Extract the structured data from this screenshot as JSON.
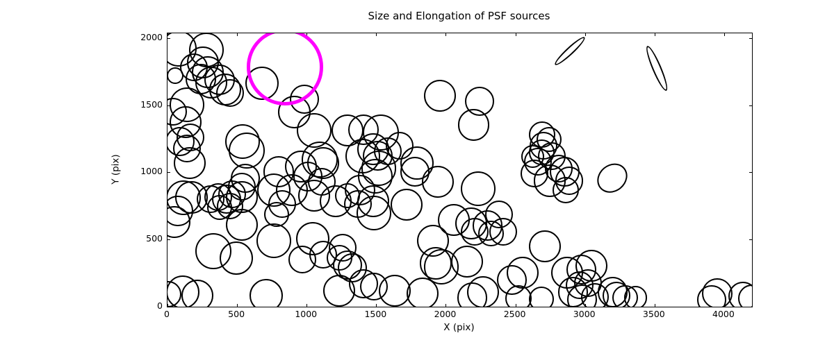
{
  "chart_data": {
    "type": "scatter",
    "title": "Size and Elongation of PSF sources",
    "xlabel": "X (pix)",
    "ylabel": "Y (pix)",
    "xlim": [
      0,
      4200
    ],
    "ylim": [
      0,
      2036
    ],
    "xticks": [
      0,
      500,
      1000,
      1500,
      2000,
      2500,
      3000,
      3500,
      4000
    ],
    "yticks": [
      0,
      500,
      1000,
      1500,
      2000
    ],
    "grid": false,
    "legend": null,
    "marker_color": "#000000",
    "marker_stroke_px": 2.2,
    "highlight_color": "#ff00ff",
    "highlight_stroke_px": 5,
    "circles_format": [
      "x",
      "y",
      "radius"
    ],
    "circles": [
      [
        80,
        1920,
        130
      ],
      [
        280,
        1910,
        125
      ],
      [
        255,
        1820,
        115
      ],
      [
        290,
        1745,
        115
      ],
      [
        240,
        1695,
        110
      ],
      [
        315,
        1670,
        115
      ],
      [
        375,
        1690,
        110
      ],
      [
        415,
        1615,
        115
      ],
      [
        190,
        1785,
        100
      ],
      [
        450,
        1590,
        100
      ],
      [
        55,
        1720,
        60
      ],
      [
        140,
        1505,
        125
      ],
      [
        40,
        1450,
        100
      ],
      [
        130,
        1375,
        115
      ],
      [
        165,
        1260,
        100
      ],
      [
        90,
        1230,
        105
      ],
      [
        140,
        1180,
        100
      ],
      [
        540,
        1230,
        125
      ],
      [
        680,
        1665,
        120
      ],
      [
        911,
        1450,
        117
      ],
      [
        985,
        1545,
        105
      ],
      [
        160,
        1070,
        115
      ],
      [
        570,
        1165,
        130
      ],
      [
        558,
        955,
        105
      ],
      [
        1056,
        1313,
        125
      ],
      [
        1295,
        1313,
        115
      ],
      [
        1096,
        1097,
        130
      ],
      [
        1121,
        1072,
        115
      ],
      [
        961,
        1046,
        115
      ],
      [
        797,
        1005,
        110
      ],
      [
        1957,
        1569,
        115
      ],
      [
        2241,
        1528,
        105
      ],
      [
        2201,
        1354,
        113
      ],
      [
        1534,
        1297,
        130
      ],
      [
        1410,
        1318,
        110
      ],
      [
        1480,
        1174,
        115
      ],
      [
        1404,
        1123,
        125
      ],
      [
        1509,
        1123,
        108
      ],
      [
        1519,
        1031,
        125
      ],
      [
        1584,
        1159,
        100
      ],
      [
        1793,
        1072,
        120
      ],
      [
        1942,
        928,
        115
      ],
      [
        1668,
        1200,
        100
      ],
      [
        1384,
        870,
        110
      ],
      [
        115,
        810,
        125
      ],
      [
        174,
        815,
        117
      ],
      [
        75,
        713,
        108
      ],
      [
        309,
        800,
        100
      ],
      [
        364,
        815,
        100
      ],
      [
        423,
        800,
        105
      ],
      [
        463,
        836,
        100
      ],
      [
        533,
        815,
        115
      ],
      [
        448,
        749,
        95
      ],
      [
        374,
        738,
        90
      ],
      [
        533,
        892,
        100
      ],
      [
        50,
        631,
        115
      ],
      [
        533,
        610,
        115
      ],
      [
        762,
        867,
        120
      ],
      [
        822,
        764,
        100
      ],
      [
        896,
        867,
        115
      ],
      [
        1011,
        969,
        105
      ],
      [
        1056,
        826,
        115
      ],
      [
        1111,
        928,
        100
      ],
      [
        1210,
        785,
        115
      ],
      [
        1295,
        826,
        90
      ],
      [
        1370,
        764,
        100
      ],
      [
        782,
        687,
        90
      ],
      [
        1479,
        785,
        115
      ],
      [
        1484,
        697,
        125
      ],
      [
        1494,
        969,
        125
      ],
      [
        1718,
        759,
        115
      ],
      [
        1778,
        1005,
        105
      ],
      [
        2231,
        877,
        125
      ],
      [
        330,
        415,
        130
      ],
      [
        495,
        360,
        120
      ],
      [
        762,
        492,
        125
      ],
      [
        1046,
        508,
        120
      ],
      [
        971,
        349,
        100
      ],
      [
        1120,
        387,
        100
      ],
      [
        1235,
        364,
        92
      ],
      [
        1295,
        308,
        105
      ],
      [
        1260,
        441,
        100
      ],
      [
        1330,
        287,
        105
      ],
      [
        1907,
        492,
        115
      ],
      [
        2057,
        646,
        115
      ],
      [
        2181,
        621,
        115
      ],
      [
        2300,
        605,
        108
      ],
      [
        2380,
        687,
        100
      ],
      [
        2206,
        559,
        100
      ],
      [
        2326,
        544,
        92
      ],
      [
        2410,
        559,
        100
      ],
      [
        2714,
        451,
        115
      ],
      [
        2554,
        251,
        115
      ],
      [
        2475,
        200,
        108
      ],
      [
        2704,
        1200,
        100
      ],
      [
        2689,
        1149,
        92
      ],
      [
        2664,
        1082,
        100
      ],
      [
        2624,
        1118,
        83
      ],
      [
        2764,
        1123,
        100
      ],
      [
        2814,
        1026,
        100
      ],
      [
        2639,
        990,
        100
      ],
      [
        2749,
        938,
        115
      ],
      [
        2854,
        1005,
        108
      ],
      [
        2690,
        1280,
        95
      ],
      [
        2740,
        1245,
        90
      ],
      [
        2888,
        938,
        100
      ],
      [
        2863,
        867,
        95
      ],
      [
        110,
        108,
        120
      ],
      [
        214,
        82,
        115
      ],
      [
        5,
        95,
        95
      ],
      [
        707,
        82,
        120
      ],
      [
        1235,
        118,
        115
      ],
      [
        1410,
        170,
        105
      ],
      [
        1484,
        149,
        100
      ],
      [
        1634,
        118,
        115
      ],
      [
        1833,
        97,
        115
      ],
      [
        1967,
        297,
        125
      ],
      [
        1927,
        323,
        115
      ],
      [
        2151,
        338,
        115
      ],
      [
        2266,
        108,
        115
      ],
      [
        2191,
        67,
        108
      ],
      [
        2520,
        62,
        95
      ],
      [
        2689,
        56,
        90
      ],
      [
        2873,
        251,
        115
      ],
      [
        2973,
        277,
        108
      ],
      [
        3048,
        303,
        115
      ],
      [
        2963,
        159,
        100
      ],
      [
        3023,
        174,
        100
      ],
      [
        2913,
        108,
        108
      ],
      [
        2978,
        56,
        108
      ],
      [
        3073,
        72,
        100
      ],
      [
        3197,
        108,
        108
      ],
      [
        3227,
        82,
        100
      ],
      [
        3287,
        67,
        92
      ],
      [
        3362,
        67,
        83
      ],
      [
        3949,
        97,
        110
      ],
      [
        3909,
        51,
        105
      ],
      [
        4133,
        77,
        105
      ],
      [
        4200,
        60,
        100
      ]
    ],
    "ellipses_format": [
      "x",
      "y",
      "semi_major",
      "semi_minor",
      "css_angle_deg"
    ],
    "ellipses": [
      [
        2894,
        1903,
        145,
        28,
        -43
      ],
      [
        3516,
        1774,
        175,
        33,
        67
      ],
      [
        3195,
        958,
        116,
        98,
        -40
      ]
    ],
    "highlight_circle": {
      "x": 844,
      "y": 1786,
      "radius": 277
    }
  }
}
